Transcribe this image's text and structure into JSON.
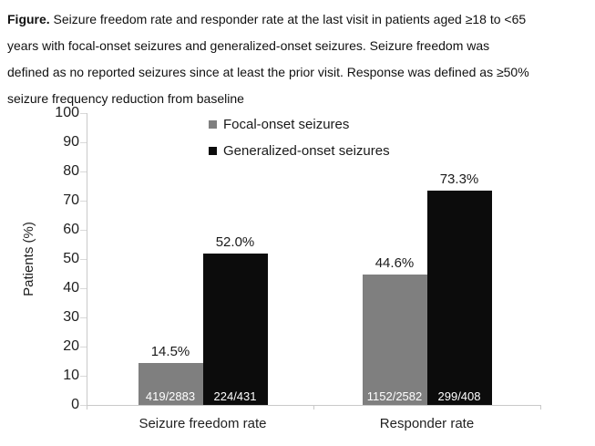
{
  "caption": {
    "label": "Figure.",
    "lines": [
      " Seizure freedom rate and responder rate at the last visit in patients aged ≥18 to <65",
      "years with focal-onset seizures and generalized-onset seizures. Seizure freedom was",
      "defined as no reported seizures since at least the prior visit. Response was defined as ≥50%",
      "seizure frequency reduction from baseline"
    ]
  },
  "chart_data": {
    "type": "bar",
    "title": "",
    "categories": [
      "Seizure freedom rate",
      "Responder rate"
    ],
    "series": [
      {
        "name": "Focal-onset seizures",
        "color": "#7f7f7f",
        "values": [
          14.5,
          44.6
        ],
        "data_labels": [
          "14.5%",
          "44.6%"
        ],
        "inner_labels": [
          "419/2883",
          "1152/2582"
        ]
      },
      {
        "name": "Generalized-onset seizures",
        "color": "#0c0c0c",
        "values": [
          52.0,
          73.3
        ],
        "data_labels": [
          "52.0%",
          "73.3%"
        ],
        "inner_labels": [
          "224/431",
          "299/408"
        ]
      }
    ],
    "ylabel": "Patients (%)",
    "ylim": [
      0,
      100
    ],
    "yticks": [
      0,
      10,
      20,
      30,
      40,
      50,
      60,
      70,
      80,
      90,
      100
    ],
    "grid": false,
    "legend_position": "top-center",
    "inner_label_color": "#ffffff",
    "colors": {
      "focal": "#7f7f7f",
      "generalized": "#0c0c0c",
      "axis_line": "#c9c9c9",
      "tick_mark": "#d9d9d9",
      "text": "#1f1f1f"
    }
  }
}
